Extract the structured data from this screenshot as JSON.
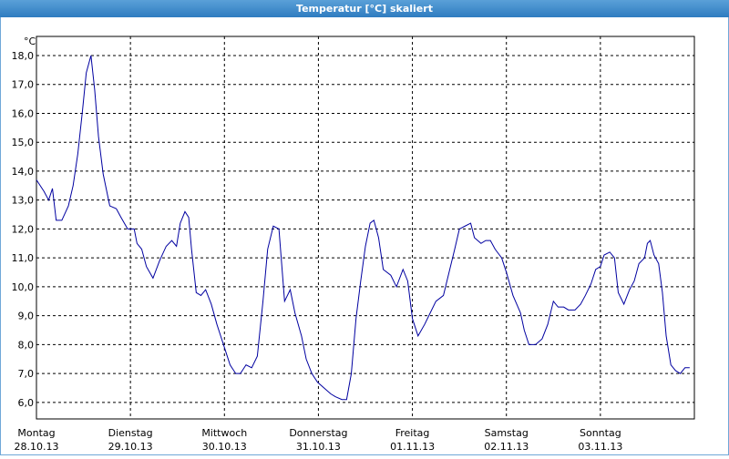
{
  "chart_data": {
    "type": "line",
    "title": "Temperatur [°C] skaliert",
    "y_label": "°C",
    "xlim": [
      0,
      7
    ],
    "ylim": [
      5.43,
      18.66
    ],
    "xticks": [
      {
        "value": 0,
        "label": "Montag",
        "date": "28.10.13"
      },
      {
        "value": 1,
        "label": "Dienstag",
        "date": "29.10.13"
      },
      {
        "value": 2,
        "label": "Mittwoch",
        "date": "30.10.13"
      },
      {
        "value": 3,
        "label": "Donnerstag",
        "date": "31.10.13"
      },
      {
        "value": 4,
        "label": "Freitag",
        "date": "01.11.13"
      },
      {
        "value": 5,
        "label": "Samstag",
        "date": "02.11.13"
      },
      {
        "value": 6,
        "label": "Sonntag",
        "date": "03.11.13"
      }
    ],
    "yticks": [
      {
        "value": 6,
        "label": "6,0"
      },
      {
        "value": 7,
        "label": "7,0"
      },
      {
        "value": 8,
        "label": "8,0"
      },
      {
        "value": 9,
        "label": "9,0"
      },
      {
        "value": 10,
        "label": "10,0"
      },
      {
        "value": 11,
        "label": "11,0"
      },
      {
        "value": 12,
        "label": "12,0"
      },
      {
        "value": 13,
        "label": "13,0"
      },
      {
        "value": 14,
        "label": "14,0"
      },
      {
        "value": 15,
        "label": "15,0"
      },
      {
        "value": 16,
        "label": "16,0"
      },
      {
        "value": 17,
        "label": "17,0"
      },
      {
        "value": 18,
        "label": "18,0"
      }
    ],
    "grid": true,
    "color": "#0000a0",
    "x": [
      0,
      0.08,
      0.13,
      0.17,
      0.21,
      0.27,
      0.34,
      0.39,
      0.44,
      0.49,
      0.53,
      0.58,
      0.62,
      0.66,
      0.71,
      0.78,
      0.85,
      0.9,
      0.97,
      1.04,
      1.07,
      1.12,
      1.17,
      1.24,
      1.31,
      1.38,
      1.44,
      1.49,
      1.53,
      1.58,
      1.62,
      1.65,
      1.7,
      1.75,
      1.8,
      1.86,
      1.92,
      1.96,
      2.0,
      2.06,
      2.12,
      2.17,
      2.23,
      2.29,
      2.35,
      2.41,
      2.46,
      2.52,
      2.58,
      2.64,
      2.7,
      2.75,
      2.82,
      2.87,
      2.93,
      2.99,
      3.06,
      3.13,
      3.18,
      3.25,
      3.3,
      3.35,
      3.4,
      3.45,
      3.5,
      3.55,
      3.59,
      3.64,
      3.69,
      3.77,
      3.83,
      3.9,
      3.95,
      4.0,
      4.06,
      4.13,
      4.19,
      4.25,
      4.33,
      4.39,
      4.45,
      4.5,
      4.56,
      4.62,
      4.66,
      4.73,
      4.78,
      4.83,
      4.88,
      4.95,
      5.0,
      5.07,
      5.15,
      5.19,
      5.24,
      5.31,
      5.38,
      5.44,
      5.5,
      5.55,
      5.61,
      5.66,
      5.73,
      5.79,
      5.84,
      5.9,
      5.95,
      6.0,
      6.04,
      6.1,
      6.15,
      6.19,
      6.25,
      6.31,
      6.36,
      6.41,
      6.47,
      6.5,
      6.53,
      6.57,
      6.62,
      6.66,
      6.7,
      6.75,
      6.8,
      6.85,
      6.9,
      6.95
    ],
    "values": [
      13.7,
      13.3,
      13.0,
      13.4,
      12.3,
      12.3,
      12.8,
      13.5,
      14.6,
      16.1,
      17.4,
      18.0,
      16.8,
      15.2,
      13.9,
      12.8,
      12.7,
      12.4,
      12.0,
      12.0,
      11.5,
      11.3,
      10.7,
      10.3,
      10.9,
      11.4,
      11.6,
      11.4,
      12.2,
      12.6,
      12.4,
      11.3,
      9.8,
      9.7,
      9.9,
      9.4,
      8.7,
      8.3,
      7.9,
      7.3,
      7.0,
      7.0,
      7.3,
      7.2,
      7.6,
      9.5,
      11.3,
      12.1,
      12.0,
      9.5,
      9.9,
      9.1,
      8.3,
      7.5,
      7.0,
      6.7,
      6.5,
      6.3,
      6.2,
      6.1,
      6.1,
      7.0,
      8.9,
      10.2,
      11.4,
      12.2,
      12.3,
      11.7,
      10.6,
      10.4,
      10.0,
      10.6,
      10.2,
      8.9,
      8.3,
      8.7,
      9.1,
      9.5,
      9.7,
      10.5,
      11.3,
      12.0,
      12.1,
      12.2,
      11.7,
      11.5,
      11.6,
      11.6,
      11.3,
      11.0,
      10.5,
      9.7,
      9.1,
      8.5,
      8.0,
      8.0,
      8.2,
      8.7,
      9.5,
      9.3,
      9.3,
      9.2,
      9.2,
      9.4,
      9.7,
      10.1,
      10.6,
      10.7,
      11.1,
      11.2,
      11.0,
      9.8,
      9.4,
      9.9,
      10.2,
      10.8,
      11.0,
      11.5,
      11.6,
      11.1,
      10.8,
      9.8,
      8.3,
      7.3,
      7.1,
      7.0,
      7.2,
      7.2
    ]
  }
}
